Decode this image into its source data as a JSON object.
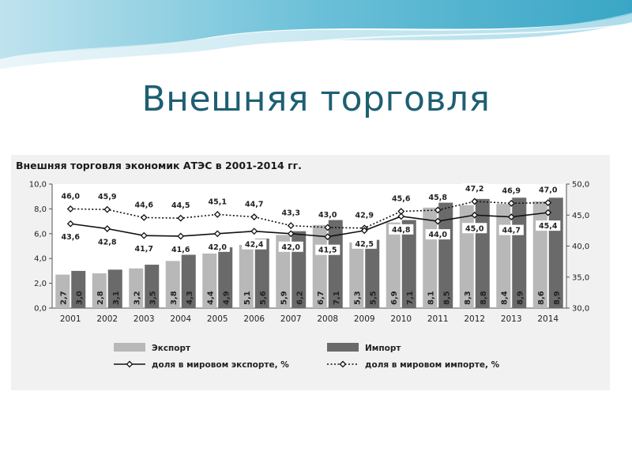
{
  "slide": {
    "title": "Внешняя торговля"
  },
  "colors": {
    "title": "#1e5f73",
    "export_bar": "#b8b8b8",
    "import_bar": "#6a6a6a",
    "export_line": "#111111",
    "import_line": "#111111"
  },
  "chart_data": {
    "type": "bar",
    "title": "Внешняя торговля экономик АТЭС в 2001-2014 гг.",
    "categories": [
      "2001",
      "2002",
      "2003",
      "2004",
      "2005",
      "2006",
      "2007",
      "2008",
      "2009",
      "2010",
      "2011",
      "2012",
      "2013",
      "2014"
    ],
    "y_left": {
      "ticks": [
        "0,0",
        "2,0",
        "4,0",
        "6,0",
        "8,0",
        "10,0"
      ],
      "range": [
        0,
        10
      ]
    },
    "y_right": {
      "ticks": [
        "30,0",
        "35,0",
        "40,0",
        "45,0",
        "50,0"
      ],
      "range": [
        30,
        50
      ]
    },
    "grid": false,
    "legend_position": "bottom",
    "series": [
      {
        "name": "Экспорт",
        "kind": "bar",
        "axis": "left",
        "values": [
          2.7,
          2.8,
          3.2,
          3.8,
          4.4,
          5.1,
          5.9,
          6.7,
          5.3,
          6.9,
          8.1,
          8.3,
          8.4,
          8.6
        ],
        "labels": [
          "2,7",
          "2,8",
          "3,2",
          "3,8",
          "4,4",
          "5,1",
          "5,9",
          "6,7",
          "5,3",
          "6,9",
          "8,1",
          "8,3",
          "8,4",
          "8,6"
        ]
      },
      {
        "name": "Импорт",
        "kind": "bar",
        "axis": "left",
        "values": [
          3.0,
          3.1,
          3.5,
          4.3,
          4.9,
          5.6,
          6.2,
          7.1,
          5.5,
          7.1,
          8.5,
          8.8,
          8.9,
          8.9
        ],
        "labels": [
          "3,0",
          "3,1",
          "3,5",
          "4,3",
          "4,9",
          "5,6",
          "6,2",
          "7,1",
          "5,5",
          "7,1",
          "8,5",
          "8,8",
          "8,9",
          "8,9"
        ]
      },
      {
        "name": "доля в мировом экспорте, %",
        "kind": "line",
        "axis": "right",
        "values": [
          43.6,
          42.8,
          41.7,
          41.6,
          42.0,
          42.4,
          42.0,
          41.5,
          42.5,
          44.8,
          44.0,
          45.0,
          44.7,
          45.4
        ],
        "labels": [
          "43,6",
          "42,8",
          "41,7",
          "41,6",
          "42,0",
          "42,4",
          "42,0",
          "41,5",
          "42,5",
          "44,8",
          "44,0",
          "45,0",
          "44,7",
          "45,4"
        ]
      },
      {
        "name": "доля в мировом импорте, %",
        "kind": "line",
        "axis": "right",
        "values": [
          46.0,
          45.9,
          44.6,
          44.5,
          45.1,
          44.7,
          43.3,
          43.0,
          42.9,
          45.6,
          45.8,
          47.2,
          46.9,
          47.0
        ],
        "labels": [
          "46,0",
          "45,9",
          "44,6",
          "44,5",
          "45,1",
          "44,7",
          "43,3",
          "43,0",
          "42,9",
          "45,6",
          "45,8",
          "47,2",
          "46,9",
          "47,0"
        ]
      }
    ]
  }
}
